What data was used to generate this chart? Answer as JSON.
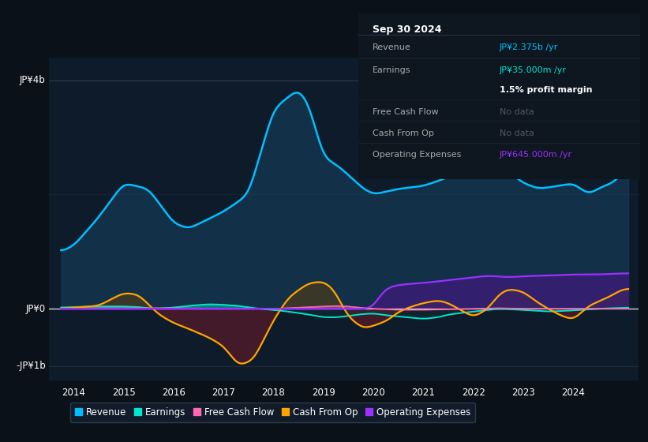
{
  "bg_color": "#0b1118",
  "plot_bg_color": "#0d1b2a",
  "x_min": 2013.5,
  "x_max": 2025.3,
  "y_min": -1250000000.0,
  "y_max": 4400000000.0,
  "x_ticks": [
    2014,
    2015,
    2016,
    2017,
    2018,
    2019,
    2020,
    2021,
    2022,
    2023,
    2024
  ],
  "colors": {
    "revenue": "#00bfff",
    "revenue_fill": "#1a4a6b",
    "earnings": "#00e5cc",
    "free_cash_flow": "#ff69b4",
    "cash_from_op": "#ffa500",
    "cash_neg_fill": "#5a1a2a",
    "operating_expenses": "#9b30ff"
  },
  "tooltip": {
    "date": "Sep 30 2024",
    "revenue_label": "Revenue",
    "revenue_value": "JP¥2.375b /yr",
    "earnings_label": "Earnings",
    "earnings_value": "JP¥35.000m /yr",
    "profit_margin": "1.5% profit margin",
    "fcf_label": "Free Cash Flow",
    "fcf_value": "No data",
    "cash_op_label": "Cash From Op",
    "cash_op_value": "No data",
    "op_exp_label": "Operating Expenses",
    "op_exp_value": "JP¥645.000m /yr"
  },
  "legend": [
    {
      "label": "Revenue",
      "color": "#00bfff"
    },
    {
      "label": "Earnings",
      "color": "#00e5cc"
    },
    {
      "label": "Free Cash Flow",
      "color": "#ff69b4"
    },
    {
      "label": "Cash From Op",
      "color": "#ffa500"
    },
    {
      "label": "Operating Expenses",
      "color": "#9b30ff"
    }
  ]
}
